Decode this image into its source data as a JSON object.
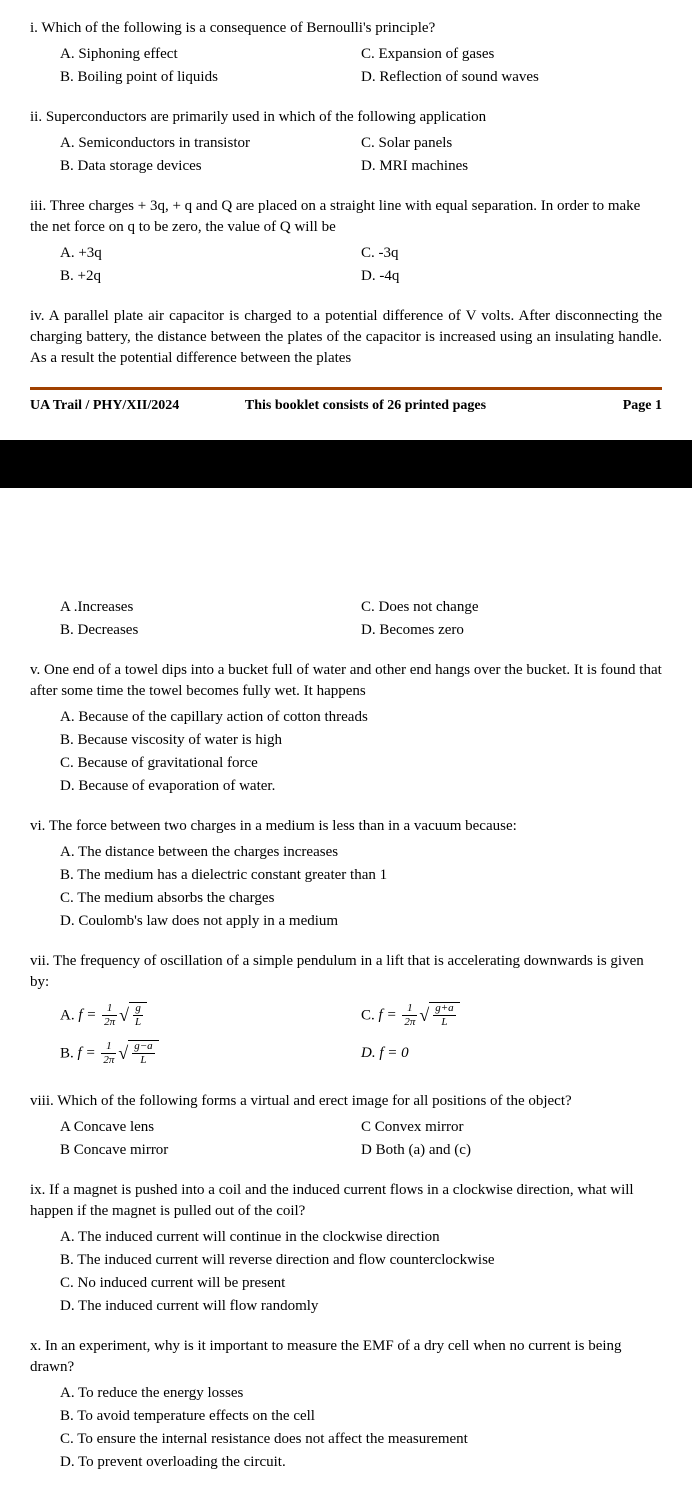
{
  "page1": {
    "q_i": {
      "text": "i. Which of the following is a consequence of Bernoulli's principle?",
      "A": "A.  Siphoning effect",
      "B": "B.  Boiling point of liquids",
      "C": "C.  Expansion of gases",
      "D": "D.  Reflection of sound waves"
    },
    "q_ii": {
      "text": "ii. Superconductors are primarily used in which of the following application",
      "A": "A.  Semiconductors in transistor",
      "B": "B.  Data storage devices",
      "C": "C.  Solar panels",
      "D": "D.  MRI machines"
    },
    "q_iii": {
      "text": "iii. Three charges + 3q, + q and Q are placed on a straight line with equal separation. In order to make the net force on q to be zero, the value of Q will be",
      "A": "A.  +3q",
      "B": "B.   +2q",
      "C": "C.   -3q",
      "D": "D.   -4q"
    },
    "q_iv": {
      "text": "iv.  A parallel plate air capacitor is charged to a potential difference of V volts. After disconnecting the charging battery, the distance between the plates of the capacitor is increased using an insulating handle. As a result the potential difference between the plates"
    },
    "footer": {
      "left": "UA Trail / PHY/XII/2024",
      "mid": "This booklet consists of 26 printed pages",
      "right": "Page 1"
    }
  },
  "page2": {
    "q_iv_opts": {
      "A": "A .Increases",
      "B": "B. Decreases",
      "C": "C. Does not change",
      "D": "D. Becomes zero"
    },
    "q_v": {
      "text": "v. One end of a towel dips into a bucket full of water and other end hangs over the bucket. It is found that after some time the towel becomes fully wet. It happens",
      "A": "A. Because of the capillary action of cotton threads",
      "B": "B. Because viscosity of water is high",
      "C": "C. Because of gravitational force",
      "D": "D. Because of evaporation of water."
    },
    "q_vi": {
      "text": "vi. The force between two charges in a medium is less than in a vacuum because:",
      "A": "A.  The distance between the charges increases",
      "B": "B.  The medium has a dielectric constant greater than 1",
      "C": "C.  The medium absorbs the charges",
      "D": "D.  Coulomb's law does not apply in a medium"
    },
    "q_vii": {
      "text": "vii. The frequency of oscillation of a simple pendulum in a lift that is accelerating downwards is given by:",
      "A_prefix": "A.  ",
      "B_prefix": "B.  ",
      "C_prefix": "C.  ",
      "D": "D.  f = 0",
      "formula": {
        "f": "f",
        "eq": " = ",
        "one": "1",
        "twopi": "2π",
        "g": "g",
        "L": "L",
        "g_minus_a": "g−a",
        "g_plus_a": "g+a"
      }
    },
    "q_viii": {
      "text": "viii. Which of the following forms a virtual and erect image for all positions of the object?",
      "A": "A Concave lens",
      "B": "B Concave mirror",
      "C": "C Convex mirror",
      "D": "D Both (a) and (c)"
    },
    "q_ix": {
      "text": "ix. If a magnet is pushed into a coil and the induced current flows in a clockwise direction, what will happen if the magnet is pulled out of the coil?",
      "A": "A.  The induced current will continue in the clockwise direction",
      "B": "B.  The induced current will reverse direction and flow counterclockwise",
      "C": "C.  No induced current will be present",
      "D": "D.  The induced current will flow randomly"
    },
    "q_x": {
      "text": "x. In an experiment, why is it important to measure the EMF of a dry cell when no current is being drawn?",
      "A": "A.  To reduce the energy losses",
      "B": "B.  To avoid temperature effects on the cell",
      "C": "C.  To ensure the internal resistance does not affect the measurement",
      "D": "D.  To prevent overloading the circuit."
    }
  }
}
